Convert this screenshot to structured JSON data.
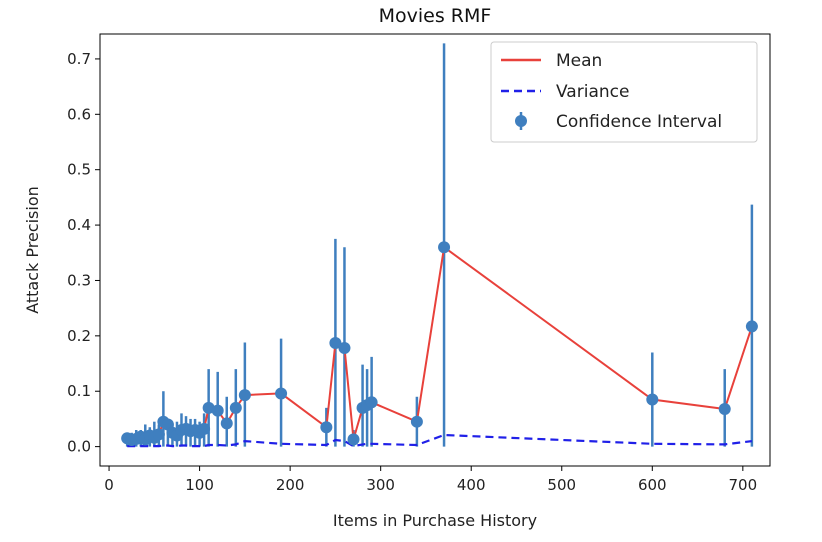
{
  "chart_data": {
    "type": "line",
    "title": "Movies RMF",
    "xlabel": "Items in Purchase History",
    "ylabel": "Attack Precision",
    "xlim": [
      -10,
      730
    ],
    "ylim": [
      -0.035,
      0.745
    ],
    "xticks": [
      0,
      100,
      200,
      300,
      400,
      500,
      600,
      700
    ],
    "yticks": [
      0.0,
      0.1,
      0.2,
      0.3,
      0.4,
      0.5,
      0.6,
      0.7
    ],
    "ytick_labels": [
      "0.0",
      "0.1",
      "0.2",
      "0.3",
      "0.4",
      "0.5",
      "0.6",
      "0.7"
    ],
    "grid": false,
    "legend_position": "top-right",
    "x": [
      20,
      25,
      30,
      35,
      40,
      45,
      50,
      55,
      60,
      65,
      70,
      75,
      80,
      85,
      90,
      95,
      100,
      105,
      110,
      120,
      130,
      140,
      150,
      190,
      240,
      250,
      260,
      270,
      280,
      285,
      290,
      340,
      370,
      600,
      680,
      710
    ],
    "series": [
      {
        "name": "Mean",
        "style": "solid",
        "color": "#e8413b",
        "values": [
          0.015,
          0.012,
          0.014,
          0.018,
          0.013,
          0.02,
          0.016,
          0.022,
          0.045,
          0.04,
          0.025,
          0.02,
          0.03,
          0.032,
          0.028,
          0.03,
          0.025,
          0.032,
          0.07,
          0.065,
          0.042,
          0.07,
          0.093,
          0.096,
          0.035,
          0.187,
          0.178,
          0.013,
          0.07,
          0.075,
          0.08,
          0.045,
          0.36,
          0.085,
          0.068,
          0.217
        ]
      },
      {
        "name": "Variance",
        "style": "dashed",
        "color": "#2020e8",
        "values": [
          0.001,
          0.001,
          0.001,
          0.001,
          0.001,
          0.001,
          0.001,
          0.001,
          0.002,
          0.002,
          0.001,
          0.001,
          0.002,
          0.002,
          0.001,
          0.001,
          0.001,
          0.001,
          0.003,
          0.003,
          0.002,
          0.004,
          0.01,
          0.005,
          0.003,
          0.012,
          0.01,
          0.001,
          0.004,
          0.005,
          0.005,
          0.003,
          0.021,
          0.005,
          0.004,
          0.01
        ]
      },
      {
        "name": "Confidence Interval",
        "style": "errorbar",
        "color": "#3f7fbf",
        "values": [
          0.015,
          0.012,
          0.014,
          0.018,
          0.013,
          0.02,
          0.016,
          0.022,
          0.045,
          0.04,
          0.025,
          0.02,
          0.03,
          0.032,
          0.028,
          0.03,
          0.025,
          0.032,
          0.07,
          0.065,
          0.042,
          0.07,
          0.093,
          0.096,
          0.035,
          0.187,
          0.178,
          0.013,
          0.07,
          0.075,
          0.08,
          0.045,
          0.36,
          0.085,
          0.068,
          0.217
        ],
        "lower": [
          0.0,
          0.0,
          0.0,
          0.0,
          0.0,
          0.0,
          0.0,
          0.0,
          0.0,
          0.0,
          0.0,
          0.0,
          0.0,
          0.0,
          0.0,
          0.0,
          0.0,
          0.0,
          0.0,
          0.0,
          0.0,
          0.0,
          0.0,
          0.0,
          0.0,
          0.0,
          0.0,
          0.0,
          0.0,
          0.0,
          0.0,
          0.0,
          0.0,
          0.0,
          0.0,
          0.0
        ],
        "upper": [
          0.02,
          0.025,
          0.03,
          0.03,
          0.04,
          0.035,
          0.045,
          0.04,
          0.1,
          0.05,
          0.04,
          0.045,
          0.06,
          0.055,
          0.05,
          0.05,
          0.045,
          0.06,
          0.14,
          0.135,
          0.09,
          0.14,
          0.188,
          0.195,
          0.07,
          0.375,
          0.36,
          0.03,
          0.148,
          0.14,
          0.162,
          0.09,
          0.728,
          0.17,
          0.14,
          0.437
        ]
      }
    ]
  },
  "legend": {
    "items": [
      {
        "label": "Mean",
        "color": "#e8413b"
      },
      {
        "label": "Variance",
        "color": "#2020e8"
      },
      {
        "label": "Confidence Interval",
        "color": "#3f7fbf"
      }
    ]
  }
}
